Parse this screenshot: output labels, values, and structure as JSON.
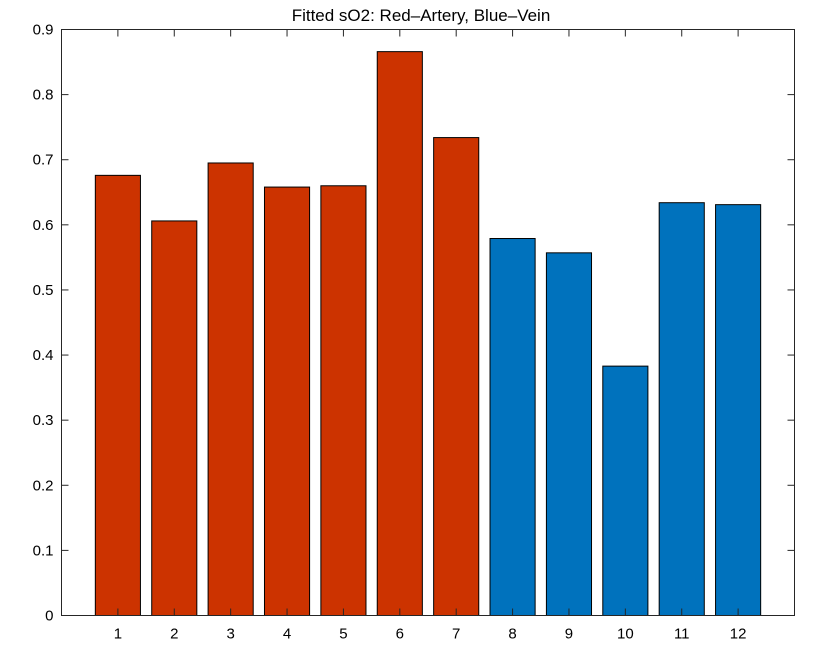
{
  "chart_data": {
    "type": "bar",
    "title": "Fitted sO2: Red–Artery, Blue–Vein",
    "xlabel": "",
    "ylabel": "",
    "categories": [
      "1",
      "2",
      "3",
      "4",
      "5",
      "6",
      "7",
      "8",
      "9",
      "10",
      "11",
      "12"
    ],
    "values": [
      0.676,
      0.606,
      0.695,
      0.658,
      0.66,
      0.866,
      0.734,
      0.579,
      0.557,
      0.383,
      0.634,
      0.631
    ],
    "bar_colors": [
      "#CC3300",
      "#CC3300",
      "#CC3300",
      "#CC3300",
      "#CC3300",
      "#CC3300",
      "#CC3300",
      "#0072BD",
      "#0072BD",
      "#0072BD",
      "#0072BD",
      "#0072BD"
    ],
    "ylim": [
      0,
      0.9
    ],
    "xlim": [
      0,
      13
    ],
    "yticks": [
      "0",
      "0.1",
      "0.2",
      "0.3",
      "0.4",
      "0.5",
      "0.6",
      "0.7",
      "0.8",
      "0.9"
    ],
    "grid": false,
    "legend": "none"
  },
  "colors": {
    "artery": "#CC3300",
    "vein": "#0072BD",
    "axis": "#262626",
    "background": "#FFFFFF"
  }
}
